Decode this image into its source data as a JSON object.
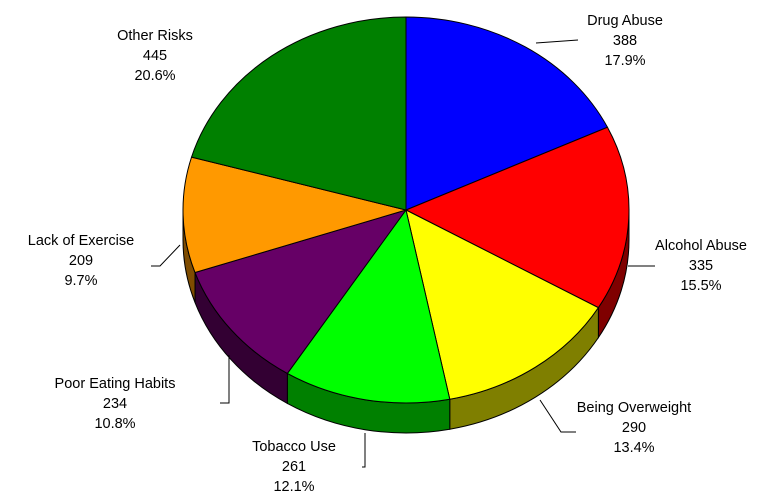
{
  "chart_data": {
    "type": "pie",
    "style": "3d",
    "start": "12 o'clock",
    "direction": "clockwise",
    "slices": [
      {
        "label": "Drug Abuse",
        "value": 388,
        "percent": "17.9%",
        "color": "#0000FF",
        "side_color": "#00007F"
      },
      {
        "label": "Alcohol Abuse",
        "value": 335,
        "percent": "15.5%",
        "color": "#FF0000",
        "side_color": "#7F0000"
      },
      {
        "label": "Being Overweight",
        "value": 290,
        "percent": "13.4%",
        "color": "#FFFF00",
        "side_color": "#7F7F00"
      },
      {
        "label": "Tobacco Use",
        "value": 261,
        "percent": "12.1%",
        "color": "#00FF00",
        "side_color": "#008000"
      },
      {
        "label": "Poor Eating Habits",
        "value": 234,
        "percent": "10.8%",
        "color": "#660066",
        "side_color": "#330033"
      },
      {
        "label": "Lack of Exercise",
        "value": 209,
        "percent": "9.7%",
        "color": "#FF9900",
        "side_color": "#7F4C00"
      },
      {
        "label": "Other Risks",
        "value": 445,
        "percent": "20.6%",
        "color": "#008000",
        "side_color": "#004000"
      }
    ]
  }
}
